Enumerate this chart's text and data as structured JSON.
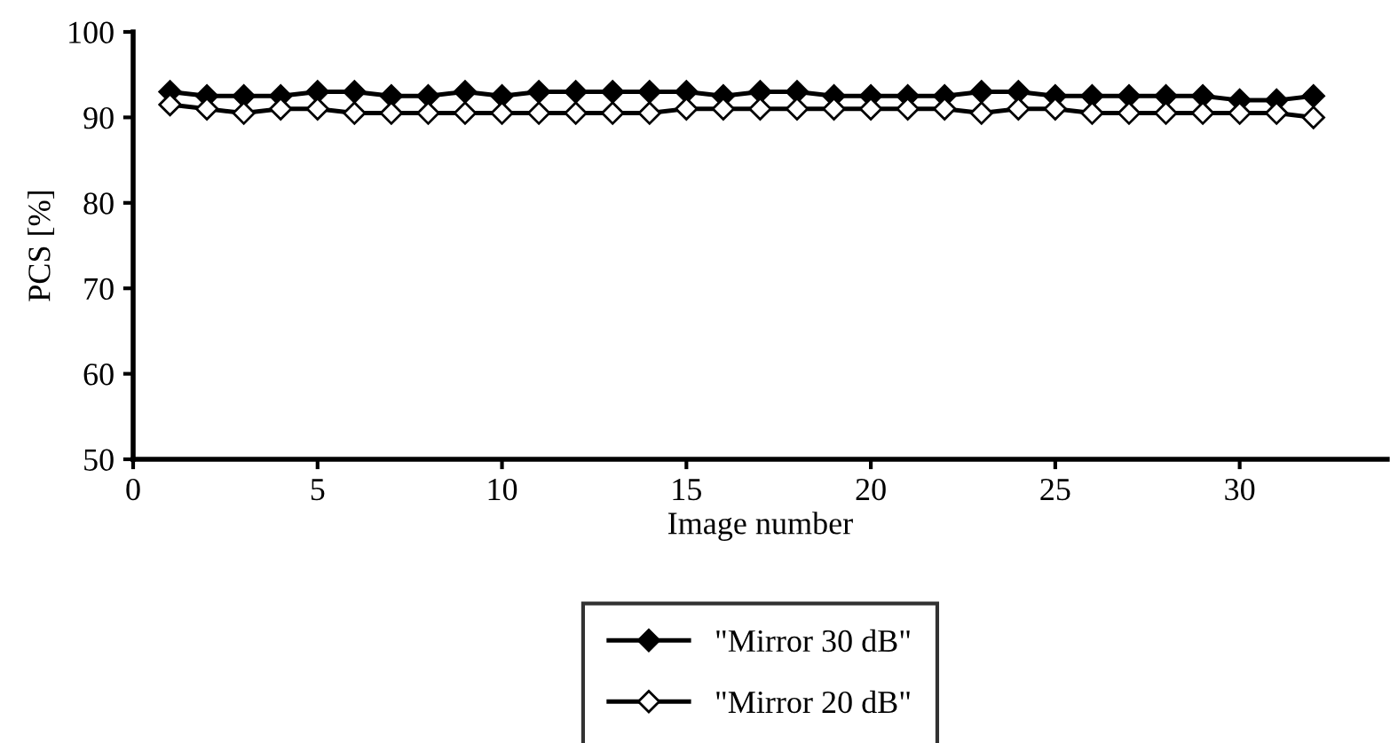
{
  "chart_data": {
    "type": "line",
    "xlabel": "Image number",
    "ylabel": "PCS [%]",
    "x": [
      1,
      2,
      3,
      4,
      5,
      6,
      7,
      8,
      9,
      10,
      11,
      12,
      13,
      14,
      15,
      16,
      17,
      18,
      19,
      20,
      21,
      22,
      23,
      24,
      25,
      26,
      27,
      28,
      29,
      30,
      31,
      32
    ],
    "series": [
      {
        "name": "\"Mirror 30 dB\"",
        "color": "#000000",
        "marker": "diamond",
        "values": [
          93,
          92.5,
          92.5,
          92.5,
          93,
          93,
          92.5,
          92.5,
          93,
          92.5,
          93,
          93,
          93,
          93,
          93,
          92.5,
          93,
          93,
          92.5,
          92.5,
          92.5,
          92.5,
          93,
          93,
          92.5,
          92.5,
          92.5,
          92.5,
          92.5,
          92,
          92,
          92.5
        ]
      },
      {
        "name": "\"Mirror 20 dB\"",
        "color": "#000000",
        "marker": "diamond",
        "values": [
          91.5,
          91,
          90.5,
          91,
          91,
          90.5,
          90.5,
          90.5,
          90.5,
          90.5,
          90.5,
          90.5,
          90.5,
          90.5,
          91,
          91,
          91,
          91,
          91,
          91,
          91,
          91,
          90.5,
          91,
          91,
          90.5,
          90.5,
          90.5,
          90.5,
          90.5,
          90.5,
          90
        ]
      }
    ],
    "xlim": [
      0,
      34
    ],
    "xticks": [
      0,
      5,
      10,
      15,
      20,
      25,
      30
    ],
    "ylim": [
      50,
      100
    ],
    "yticks": [
      50,
      60,
      70,
      80,
      90,
      100
    ],
    "grid": false,
    "legend": "bottom",
    "line_style": "solid"
  }
}
